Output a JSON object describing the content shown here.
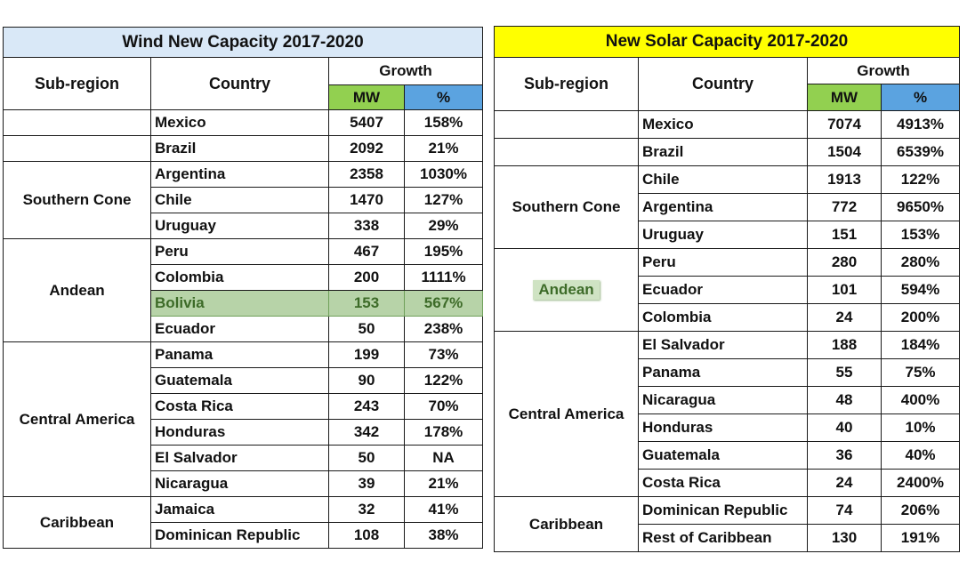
{
  "wind": {
    "title": "Wind New Capacity 2017-2020",
    "title_bg": "#d9e8f7",
    "headers": {
      "subregion": "Sub-region",
      "country": "Country",
      "growth": "Growth",
      "mw": "MW",
      "pct": "%"
    },
    "rows": [
      {
        "country": "Mexico",
        "mw": "5407",
        "pct": "158%"
      },
      {
        "country": "Brazil",
        "mw": "2092",
        "pct": "21%"
      },
      {
        "country": "Argentina",
        "mw": "2358",
        "pct": "1030%"
      },
      {
        "country": "Chile",
        "mw": "1470",
        "pct": "127%"
      },
      {
        "country": "Uruguay",
        "mw": "338",
        "pct": "29%"
      },
      {
        "country": "Peru",
        "mw": "467",
        "pct": "195%"
      },
      {
        "country": "Colombia",
        "mw": "200",
        "pct": "1111%"
      },
      {
        "country": "Bolivia",
        "mw": "153",
        "pct": "567%"
      },
      {
        "country": "Ecuador",
        "mw": "50",
        "pct": "238%"
      },
      {
        "country": "Panama",
        "mw": "199",
        "pct": "73%"
      },
      {
        "country": "Guatemala",
        "mw": "90",
        "pct": "122%"
      },
      {
        "country": "Costa Rica",
        "mw": "243",
        "pct": "70%"
      },
      {
        "country": "Honduras",
        "mw": "342",
        "pct": "178%"
      },
      {
        "country": "El Salvador",
        "mw": "50",
        "pct": "NA"
      },
      {
        "country": "Nicaragua",
        "mw": "39",
        "pct": "21%"
      },
      {
        "country": "Jamaica",
        "mw": "32",
        "pct": "41%"
      },
      {
        "country": "Dominican Republic",
        "mw": "108",
        "pct": "38%"
      }
    ],
    "regions": [
      "Southern Cone",
      "Andean",
      "Central America",
      "Caribbean"
    ]
  },
  "solar": {
    "title": "New Solar Capacity 2017-2020",
    "title_bg": "#ffff00",
    "headers": {
      "subregion": "Sub-region",
      "country": "Country",
      "growth": "Growth",
      "mw": "MW",
      "pct": "%"
    },
    "rows": [
      {
        "country": "Mexico",
        "mw": "7074",
        "pct": "4913%"
      },
      {
        "country": "Brazil",
        "mw": "1504",
        "pct": "6539%"
      },
      {
        "country": "Chile",
        "mw": "1913",
        "pct": "122%"
      },
      {
        "country": "Argentina",
        "mw": "772",
        "pct": "9650%"
      },
      {
        "country": "Uruguay",
        "mw": "151",
        "pct": "153%"
      },
      {
        "country": "Peru",
        "mw": "280",
        "pct": "280%"
      },
      {
        "country": "Ecuador",
        "mw": "101",
        "pct": "594%"
      },
      {
        "country": "Colombia",
        "mw": "24",
        "pct": "200%"
      },
      {
        "country": "El Salvador",
        "mw": "188",
        "pct": "184%"
      },
      {
        "country": "Panama",
        "mw": "55",
        "pct": "75%"
      },
      {
        "country": "Nicaragua",
        "mw": "48",
        "pct": "400%"
      },
      {
        "country": "Honduras",
        "mw": "40",
        "pct": "10%"
      },
      {
        "country": "Guatemala",
        "mw": "36",
        "pct": "40%"
      },
      {
        "country": "Costa Rica",
        "mw": "24",
        "pct": "2400%"
      },
      {
        "country": "Dominican Republic",
        "mw": "74",
        "pct": "206%"
      },
      {
        "country": "Rest of Caribbean",
        "mw": "130",
        "pct": "191%"
      }
    ],
    "regions": [
      "Southern Cone",
      "Andean",
      "Central America",
      "Caribbean"
    ]
  }
}
